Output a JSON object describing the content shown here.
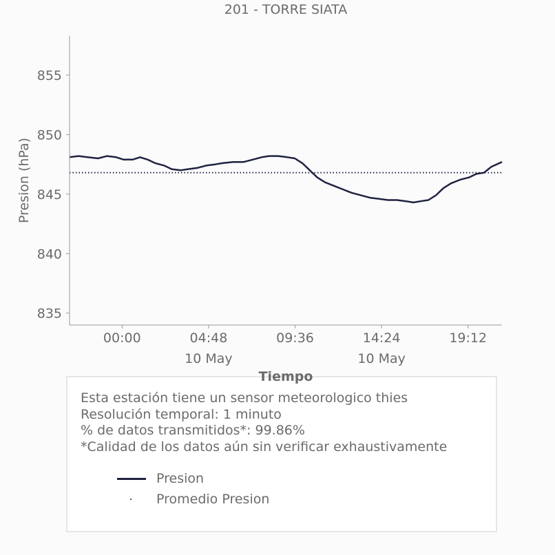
{
  "chart_data": {
    "type": "line",
    "title": "201 - TORRE SIATA",
    "xlabel": "Tiempo",
    "ylabel": "Presion (hPa)",
    "ylim": [
      834,
      858.3
    ],
    "xlim": [
      "2024-05-09 21:05",
      "2024-05-10 21:05"
    ],
    "yticks": [
      835,
      840,
      845,
      850,
      855
    ],
    "xticks": [
      {
        "at": "2024-05-10 00:00",
        "label": "00:00",
        "sublabel": ""
      },
      {
        "at": "2024-05-10 04:48",
        "label": "04:48",
        "sublabel": "10 May"
      },
      {
        "at": "2024-05-10 09:36",
        "label": "09:36",
        "sublabel": ""
      },
      {
        "at": "2024-05-10 14:24",
        "label": "14:24",
        "sublabel": "10 May"
      },
      {
        "at": "2024-05-10 19:12",
        "label": "19:12",
        "sublabel": ""
      }
    ],
    "grid": false,
    "series": [
      {
        "name": "Presion",
        "color": "#1f2240",
        "style": "solid",
        "points": [
          [
            "2024-05-09 21:05",
            848.1
          ],
          [
            "2024-05-09 21:35",
            848.2
          ],
          [
            "2024-05-09 22:05",
            848.1
          ],
          [
            "2024-05-09 22:40",
            848.0
          ],
          [
            "2024-05-09 23:10",
            848.2
          ],
          [
            "2024-05-09 23:40",
            848.1
          ],
          [
            "2024-05-10 00:05",
            847.9
          ],
          [
            "2024-05-10 00:35",
            847.9
          ],
          [
            "2024-05-10 01:00",
            848.1
          ],
          [
            "2024-05-10 01:25",
            847.9
          ],
          [
            "2024-05-10 01:50",
            847.6
          ],
          [
            "2024-05-10 02:20",
            847.4
          ],
          [
            "2024-05-10 02:45",
            847.1
          ],
          [
            "2024-05-10 03:15",
            847.0
          ],
          [
            "2024-05-10 03:40",
            847.1
          ],
          [
            "2024-05-10 04:10",
            847.2
          ],
          [
            "2024-05-10 04:40",
            847.4
          ],
          [
            "2024-05-10 05:10",
            847.5
          ],
          [
            "2024-05-10 05:35",
            847.6
          ],
          [
            "2024-05-10 06:10",
            847.7
          ],
          [
            "2024-05-10 06:45",
            847.7
          ],
          [
            "2024-05-10 07:15",
            847.9
          ],
          [
            "2024-05-10 07:45",
            848.1
          ],
          [
            "2024-05-10 08:10",
            848.2
          ],
          [
            "2024-05-10 08:40",
            848.2
          ],
          [
            "2024-05-10 09:10",
            848.1
          ],
          [
            "2024-05-10 09:35",
            848.0
          ],
          [
            "2024-05-10 10:00",
            847.6
          ],
          [
            "2024-05-10 10:25",
            847.0
          ],
          [
            "2024-05-10 10:50",
            846.4
          ],
          [
            "2024-05-10 11:15",
            846.0
          ],
          [
            "2024-05-10 11:45",
            845.7
          ],
          [
            "2024-05-10 12:15",
            845.4
          ],
          [
            "2024-05-10 12:45",
            845.1
          ],
          [
            "2024-05-10 13:15",
            844.9
          ],
          [
            "2024-05-10 13:45",
            844.7
          ],
          [
            "2024-05-10 14:15",
            844.6
          ],
          [
            "2024-05-10 14:45",
            844.5
          ],
          [
            "2024-05-10 15:15",
            844.5
          ],
          [
            "2024-05-10 15:45",
            844.4
          ],
          [
            "2024-05-10 16:10",
            844.3
          ],
          [
            "2024-05-10 16:35",
            844.4
          ],
          [
            "2024-05-10 17:00",
            844.5
          ],
          [
            "2024-05-10 17:25",
            844.9
          ],
          [
            "2024-05-10 17:50",
            845.5
          ],
          [
            "2024-05-10 18:15",
            845.9
          ],
          [
            "2024-05-10 18:45",
            846.2
          ],
          [
            "2024-05-10 19:15",
            846.4
          ],
          [
            "2024-05-10 19:40",
            846.7
          ],
          [
            "2024-05-10 20:05",
            846.8
          ],
          [
            "2024-05-10 20:30",
            847.3
          ],
          [
            "2024-05-10 21:05",
            847.7
          ]
        ]
      },
      {
        "name": "Promedio Presion",
        "color": "#1f2240",
        "style": "dotted",
        "value": 846.8
      }
    ]
  },
  "info": {
    "lines": [
      "Esta estación tiene un sensor meteorologico thies",
      "Resolución temporal: 1 minuto",
      "% de datos transmitidos*: 99.86%",
      "*Calidad de los datos aún sin verificar exhaustivamente"
    ]
  },
  "legend": {
    "items": [
      {
        "label": "Presion",
        "kind": "line"
      },
      {
        "label": "Promedio Presion",
        "kind": "dot"
      }
    ]
  }
}
